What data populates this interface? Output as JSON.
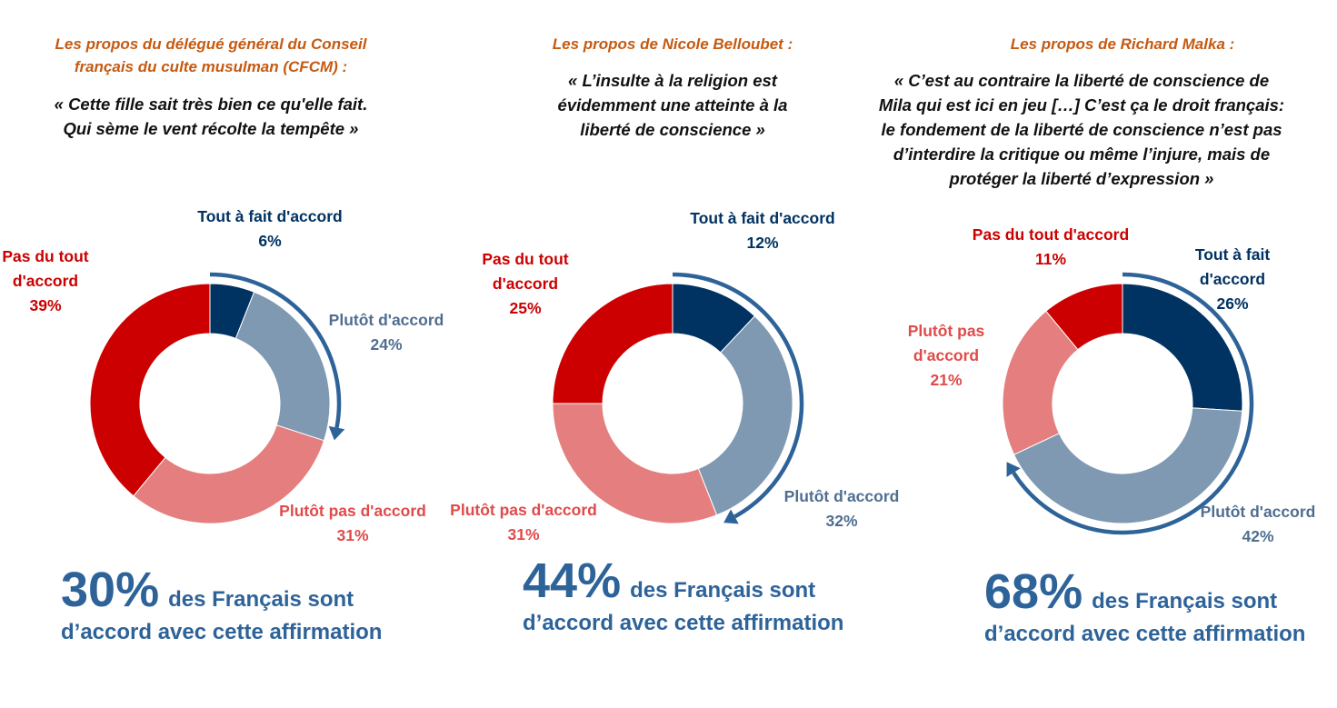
{
  "colors": {
    "tout_a_fait": "#003262",
    "plutot_accord": "#7F99B3",
    "plutot_pas": "#E57E7E",
    "pas_du_tout": "#CC0000",
    "arrow": "#2E6399",
    "title": "#C55A11"
  },
  "chart_data": [
    {
      "type": "pie",
      "title": "Les propos du délégué général du Conseil\nfrançais du culte musulman (CFCM) :",
      "quote": "« Cette fille sait très bien ce qu'elle fait.\nQui sème le vent récolte la tempête »",
      "categories": [
        "Tout à fait d'accord",
        "Plutôt d'accord",
        "Plutôt pas d'accord",
        "Pas du tout d'accord"
      ],
      "labels": [
        "Tout à fait d'accord",
        "Plutôt d'accord",
        "Plutôt pas d'accord",
        "Pas du tout\nd'accord"
      ],
      "values": [
        6,
        24,
        31,
        39
      ],
      "agree_total": "30%",
      "agree_text_1": "des Français sont",
      "agree_text_2": "d’accord avec cette affirmation"
    },
    {
      "type": "pie",
      "title": "Les propos de Nicole Belloubet :",
      "quote": "« L’insulte à la religion est\névidemment une atteinte à la\nliberté de conscience »",
      "categories": [
        "Tout à fait d'accord",
        "Plutôt d'accord",
        "Plutôt pas d'accord",
        "Pas du tout d'accord"
      ],
      "labels": [
        "Tout à fait d'accord",
        "Plutôt d'accord",
        "Plutôt pas d'accord",
        "Pas du tout\nd'accord"
      ],
      "values": [
        12,
        32,
        31,
        25
      ],
      "agree_total": "44%",
      "agree_text_1": "des Français sont",
      "agree_text_2": "d’accord avec cette affirmation"
    },
    {
      "type": "pie",
      "title": "Les propos de Richard Malka :",
      "quote": "« C’est au contraire la liberté de conscience de\nMila qui est ici en jeu […] C’est ça le droit français:\nle fondement de la liberté de conscience n’est pas\nd’interdire la critique ou même l’injure, mais de\nprotéger la liberté d’expression »",
      "categories": [
        "Tout à fait d'accord",
        "Plutôt d'accord",
        "Plutôt pas d'accord",
        "Pas du tout d'accord"
      ],
      "labels": [
        "Tout à fait\nd'accord",
        "Plutôt d'accord",
        "Plutôt pas\nd'accord",
        "Pas du tout d'accord"
      ],
      "values": [
        26,
        42,
        21,
        11
      ],
      "agree_total": "68%",
      "agree_text_1": "des Français sont",
      "agree_text_2": "d’accord avec cette affirmation"
    }
  ]
}
